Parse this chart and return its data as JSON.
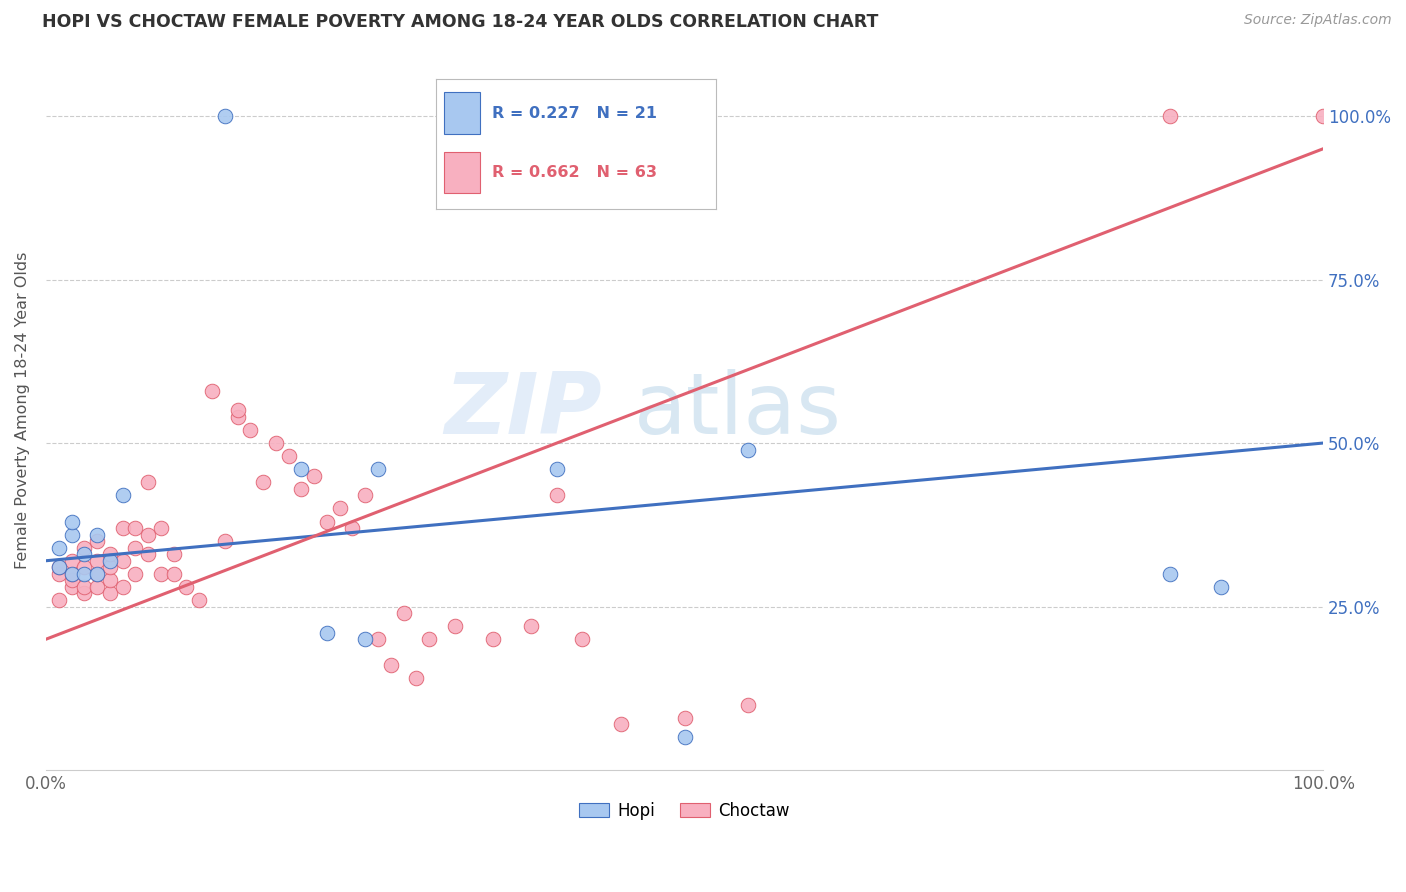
{
  "title": "HOPI VS CHOCTAW FEMALE POVERTY AMONG 18-24 YEAR OLDS CORRELATION CHART",
  "source": "Source: ZipAtlas.com",
  "ylabel": "Female Poverty Among 18-24 Year Olds",
  "xlim": [
    0.0,
    1.0
  ],
  "ylim": [
    0.0,
    1.1
  ],
  "hopi_color": "#a8c8f0",
  "choctaw_color": "#f8b0c0",
  "hopi_line_color": "#4070c0",
  "choctaw_line_color": "#e06070",
  "hopi_R": 0.227,
  "hopi_N": 21,
  "choctaw_R": 0.662,
  "choctaw_N": 63,
  "watermark_zip": "ZIP",
  "watermark_atlas": "atlas",
  "hopi_x": [
    0.01,
    0.01,
    0.02,
    0.02,
    0.02,
    0.03,
    0.03,
    0.04,
    0.04,
    0.05,
    0.06,
    0.14,
    0.2,
    0.22,
    0.25,
    0.26,
    0.4,
    0.5,
    0.55,
    0.88,
    0.92
  ],
  "hopi_y": [
    0.31,
    0.34,
    0.3,
    0.36,
    0.38,
    0.3,
    0.33,
    0.3,
    0.36,
    0.32,
    0.42,
    1.0,
    0.46,
    0.21,
    0.2,
    0.46,
    0.46,
    0.05,
    0.49,
    0.3,
    0.28
  ],
  "choctaw_x": [
    0.01,
    0.01,
    0.01,
    0.02,
    0.02,
    0.02,
    0.02,
    0.03,
    0.03,
    0.03,
    0.03,
    0.04,
    0.04,
    0.04,
    0.04,
    0.05,
    0.05,
    0.05,
    0.05,
    0.06,
    0.06,
    0.06,
    0.07,
    0.07,
    0.07,
    0.08,
    0.08,
    0.08,
    0.09,
    0.09,
    0.1,
    0.1,
    0.11,
    0.12,
    0.13,
    0.14,
    0.15,
    0.15,
    0.16,
    0.17,
    0.18,
    0.19,
    0.2,
    0.21,
    0.22,
    0.23,
    0.24,
    0.25,
    0.26,
    0.27,
    0.28,
    0.29,
    0.3,
    0.32,
    0.35,
    0.38,
    0.4,
    0.42,
    0.45,
    0.5,
    0.55,
    0.88,
    1.0
  ],
  "choctaw_y": [
    0.26,
    0.3,
    0.31,
    0.28,
    0.29,
    0.3,
    0.32,
    0.27,
    0.28,
    0.31,
    0.34,
    0.28,
    0.3,
    0.32,
    0.35,
    0.27,
    0.29,
    0.31,
    0.33,
    0.28,
    0.32,
    0.37,
    0.3,
    0.34,
    0.37,
    0.33,
    0.36,
    0.44,
    0.3,
    0.37,
    0.3,
    0.33,
    0.28,
    0.26,
    0.58,
    0.35,
    0.54,
    0.55,
    0.52,
    0.44,
    0.5,
    0.48,
    0.43,
    0.45,
    0.38,
    0.4,
    0.37,
    0.42,
    0.2,
    0.16,
    0.24,
    0.14,
    0.2,
    0.22,
    0.2,
    0.22,
    0.42,
    0.2,
    0.07,
    0.08,
    0.1,
    1.0,
    1.0
  ],
  "hopi_line_x": [
    0.0,
    1.0
  ],
  "hopi_line_y": [
    0.32,
    0.5
  ],
  "choctaw_line_x": [
    0.0,
    1.0
  ],
  "choctaw_line_y": [
    0.2,
    0.95
  ]
}
